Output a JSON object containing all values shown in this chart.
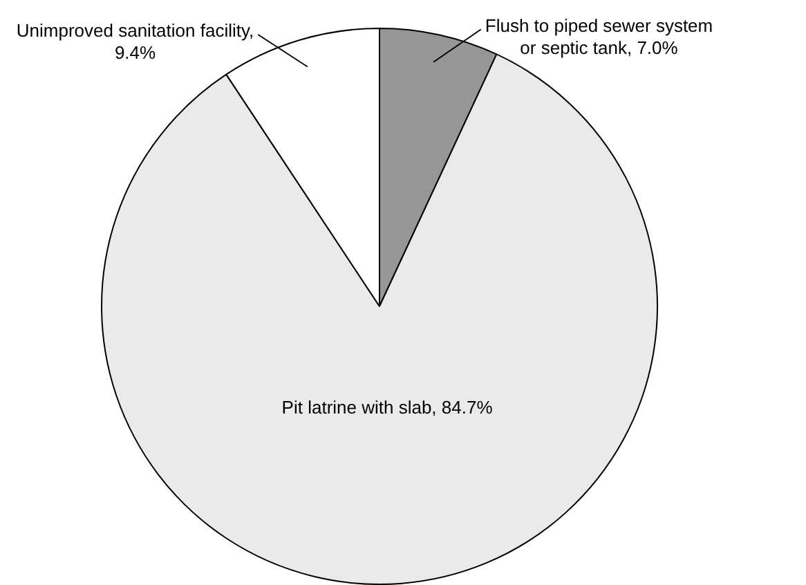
{
  "chart_data": {
    "type": "pie",
    "categories": [
      "Flush to piped sewer system or septic tank, 7.0%",
      "Pit latrine with slab, 84.7%",
      "Unimproved sanitation facility, 9.4%"
    ],
    "values": [
      7.0,
      84.7,
      9.4
    ],
    "colors": [
      "#969696",
      "#eaeaea",
      "#ffffff"
    ],
    "legend": false
  }
}
